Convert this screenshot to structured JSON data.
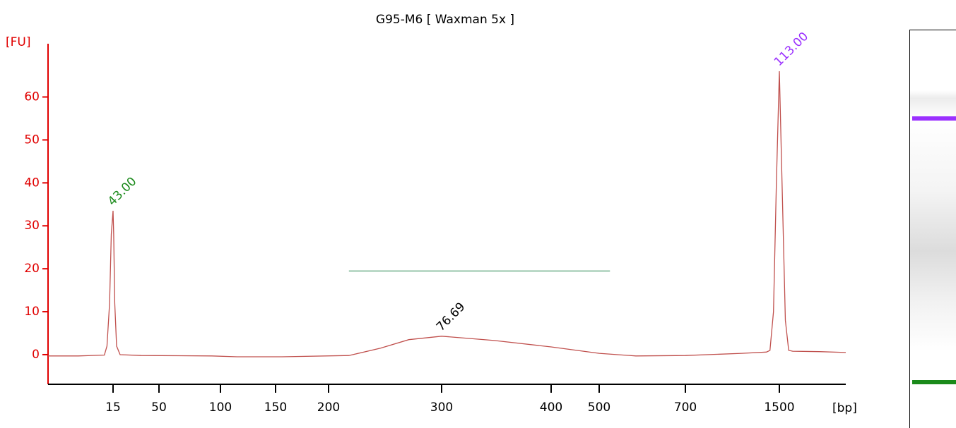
{
  "chart_data": {
    "type": "line",
    "title": "G95-M6  [ Waxman 5x ]",
    "y_label": "[FU]",
    "x_label": "[bp]",
    "color": "#c0504d",
    "x": [
      0,
      7,
      13,
      13.6,
      14.2,
      14.6,
      15,
      15.5,
      16.3,
      17.7,
      20.4,
      36.5,
      93,
      115,
      156,
      218,
      246,
      271,
      300,
      348,
      400,
      500,
      585,
      700,
      1180,
      1390,
      1420,
      1450,
      1475,
      1500,
      1520,
      1545,
      1570,
      1600,
      1800,
      2000
    ],
    "values": [
      -0.3,
      -0.3,
      -0.1,
      2,
      12,
      28,
      33.5,
      28,
      12,
      2,
      0,
      -0.2,
      -0.3,
      -0.5,
      -0.5,
      -0.2,
      1.5,
      3.5,
      4.3,
      3.3,
      1.8,
      0.3,
      -0.3,
      -0.2,
      0.3,
      0.6,
      1,
      10,
      40,
      66,
      40,
      8,
      1,
      0.8,
      0.7,
      0.5
    ],
    "xlim": [
      0,
      2000
    ],
    "xticks": [
      15,
      50,
      100,
      150,
      200,
      300,
      400,
      500,
      700,
      1500
    ],
    "ylim": [
      -6.9,
      72.4
    ],
    "yticks": [
      0,
      10,
      20,
      30,
      40,
      50,
      60
    ],
    "region": {
      "from": 218,
      "to": 525,
      "level": 19.5,
      "color": "#2e8b57"
    },
    "annotations": [
      {
        "text": "43.00",
        "x": 15,
        "y": 33.5,
        "color": "#1a8a1a"
      },
      {
        "text": "76.69",
        "x": 300,
        "y": 4.3,
        "color": "#000000"
      },
      {
        "text": "113.00",
        "x": 1500,
        "y": 66,
        "color": "#9b30ff"
      }
    ]
  }
}
